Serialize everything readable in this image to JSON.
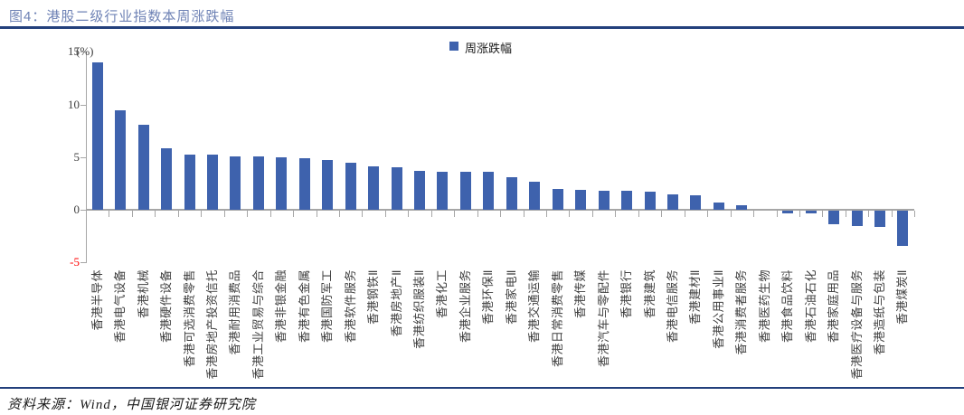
{
  "figure": {
    "title": "图4：港股二级行业指数本周涨跌幅"
  },
  "legend": {
    "label": "周涨跌幅"
  },
  "footer": {
    "source": "资料来源：Wind，中国银河证券研究院"
  },
  "colors": {
    "bar": "#3E62AD",
    "title": "#6E82B5",
    "rule": "#23407C",
    "axis": "#A6A6A6",
    "tick_label": "#404040",
    "negative_tick_label": "#FF0000",
    "x_label": "#3F3F3F"
  },
  "chart_data": {
    "type": "bar",
    "title": "图4：港股二级行业指数本周涨跌幅",
    "xlabel": "",
    "ylabel": "(%)",
    "ylim": [
      -5,
      15
    ],
    "yticks": [
      15,
      10,
      5,
      0,
      -5
    ],
    "grid": false,
    "legend_entries": [
      "周涨跌幅"
    ],
    "legend_position": "top-center",
    "categories": [
      "香港半导体",
      "香港电气设备",
      "香港机械",
      "香港硬件设备",
      "香港可选消费零售",
      "香港房地产投资信托",
      "香港耐用消费品",
      "香港工业贸易与综合",
      "香港非银金融",
      "香港有色金属",
      "香港国防军工",
      "香港软件服务",
      "香港钢铁Ⅱ",
      "香港房地产Ⅱ",
      "香港纺织服装Ⅱ",
      "香港化工",
      "香港企业服务",
      "香港环保Ⅱ",
      "香港家电Ⅱ",
      "香港交通运输",
      "香港日常消费零售",
      "香港传媒",
      "香港汽车与零配件",
      "香港银行",
      "香港建筑",
      "香港电信服务",
      "香港建材Ⅱ",
      "香港公用事业Ⅱ",
      "香港消费者服务",
      "香港医药生物",
      "香港食品饮料",
      "香港石油石化",
      "香港家庭用品",
      "香港医疗设备与服务",
      "香港造纸与包装",
      "香港煤炭Ⅱ"
    ],
    "series": [
      {
        "name": "周涨跌幅",
        "values": [
          14.0,
          9.4,
          8.1,
          5.8,
          5.2,
          5.2,
          5.1,
          5.1,
          5.0,
          4.9,
          4.7,
          4.5,
          4.1,
          4.0,
          3.7,
          3.6,
          3.6,
          3.6,
          3.1,
          2.7,
          2.0,
          1.9,
          1.8,
          1.8,
          1.7,
          1.5,
          1.4,
          0.7,
          0.4,
          0.0,
          -0.3,
          -0.3,
          -1.3,
          -1.5,
          -1.6,
          -3.4
        ]
      }
    ]
  }
}
